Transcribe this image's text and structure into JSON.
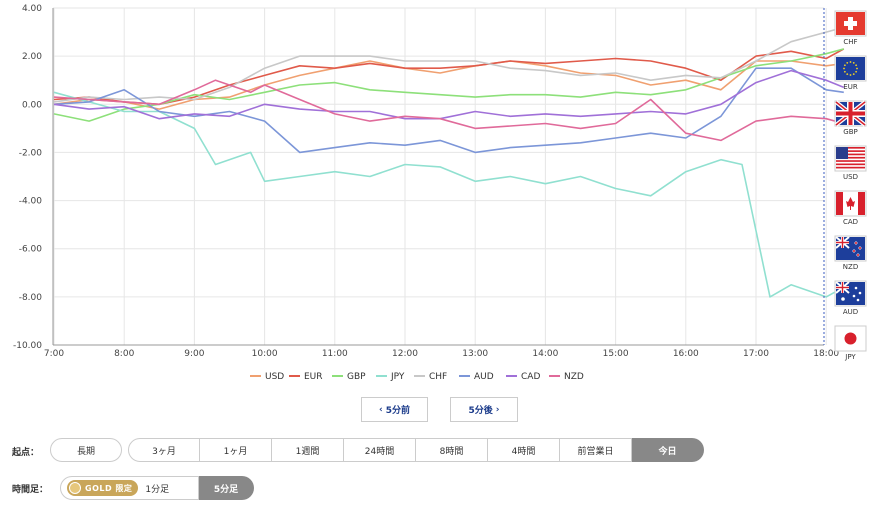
{
  "chart_data": {
    "type": "line",
    "x_ticks": [
      "7:00",
      "8:00",
      "9:00",
      "10:00",
      "11:00",
      "12:00",
      "13:00",
      "14:00",
      "15:00",
      "16:00",
      "17:00",
      "18:00"
    ],
    "y_ticks": [
      "4.00",
      "2.00",
      "0.00",
      "-2.00",
      "-4.00",
      "-6.00",
      "-8.00",
      "-10.00"
    ],
    "ylim": [
      -10,
      4
    ],
    "xlim": [
      "7:00",
      "18:15"
    ],
    "grid": true,
    "legend_position": "bottom",
    "series": [
      {
        "name": "USD",
        "color": "#f0a070",
        "points": [
          [
            0,
            0.0
          ],
          [
            0.5,
            0.2
          ],
          [
            1,
            0.1
          ],
          [
            1.5,
            -0.2
          ],
          [
            2,
            0.2
          ],
          [
            2.5,
            0.3
          ],
          [
            3,
            0.8
          ],
          [
            3.5,
            1.2
          ],
          [
            4,
            1.5
          ],
          [
            4.5,
            1.8
          ],
          [
            5,
            1.5
          ],
          [
            5.5,
            1.3
          ],
          [
            6,
            1.6
          ],
          [
            6.5,
            1.8
          ],
          [
            7,
            1.6
          ],
          [
            7.5,
            1.3
          ],
          [
            8,
            1.2
          ],
          [
            8.5,
            0.8
          ],
          [
            9,
            1.0
          ],
          [
            9.5,
            0.6
          ],
          [
            10,
            1.8
          ],
          [
            10.5,
            1.8
          ],
          [
            11,
            1.6
          ],
          [
            11.25,
            1.7
          ]
        ]
      },
      {
        "name": "EUR",
        "color": "#e05a4a",
        "points": [
          [
            0,
            0.2
          ],
          [
            0.5,
            0.3
          ],
          [
            1,
            0.1
          ],
          [
            1.5,
            0.0
          ],
          [
            2,
            0.3
          ],
          [
            2.5,
            0.8
          ],
          [
            3,
            1.2
          ],
          [
            3.5,
            1.6
          ],
          [
            4,
            1.5
          ],
          [
            4.5,
            1.7
          ],
          [
            5,
            1.5
          ],
          [
            5.5,
            1.5
          ],
          [
            6,
            1.6
          ],
          [
            6.5,
            1.8
          ],
          [
            7,
            1.7
          ],
          [
            7.5,
            1.8
          ],
          [
            8,
            1.9
          ],
          [
            8.5,
            1.8
          ],
          [
            9,
            1.5
          ],
          [
            9.5,
            1.0
          ],
          [
            10,
            2.0
          ],
          [
            10.5,
            2.2
          ],
          [
            11,
            1.9
          ],
          [
            11.25,
            2.3
          ]
        ]
      },
      {
        "name": "GBP",
        "color": "#8de07a",
        "points": [
          [
            0,
            -0.4
          ],
          [
            0.5,
            -0.7
          ],
          [
            1,
            -0.2
          ],
          [
            1.5,
            0.0
          ],
          [
            2,
            0.4
          ],
          [
            2.5,
            0.2
          ],
          [
            3,
            0.5
          ],
          [
            3.5,
            0.8
          ],
          [
            4,
            0.9
          ],
          [
            4.5,
            0.6
          ],
          [
            5,
            0.5
          ],
          [
            5.5,
            0.4
          ],
          [
            6,
            0.3
          ],
          [
            6.5,
            0.4
          ],
          [
            7,
            0.4
          ],
          [
            7.5,
            0.3
          ],
          [
            8,
            0.5
          ],
          [
            8.5,
            0.4
          ],
          [
            9,
            0.6
          ],
          [
            9.5,
            1.1
          ],
          [
            10,
            1.6
          ],
          [
            10.5,
            1.8
          ],
          [
            11,
            2.1
          ],
          [
            11.25,
            2.3
          ]
        ]
      },
      {
        "name": "JPY",
        "color": "#90e0d0",
        "points": [
          [
            0,
            0.5
          ],
          [
            0.5,
            0.1
          ],
          [
            1,
            -0.3
          ],
          [
            1.5,
            -0.3
          ],
          [
            2,
            -1.0
          ],
          [
            2.3,
            -2.5
          ],
          [
            2.8,
            -2.0
          ],
          [
            3,
            -3.2
          ],
          [
            3.5,
            -3.0
          ],
          [
            4,
            -2.8
          ],
          [
            4.5,
            -3.0
          ],
          [
            5,
            -2.5
          ],
          [
            5.5,
            -2.6
          ],
          [
            6,
            -3.2
          ],
          [
            6.5,
            -3.0
          ],
          [
            7,
            -3.3
          ],
          [
            7.5,
            -3.0
          ],
          [
            8,
            -3.5
          ],
          [
            8.5,
            -3.8
          ],
          [
            9,
            -2.8
          ],
          [
            9.5,
            -2.3
          ],
          [
            9.8,
            -2.5
          ],
          [
            10.2,
            -8.0
          ],
          [
            10.5,
            -7.5
          ],
          [
            11,
            -8.0
          ],
          [
            11.25,
            -7.6
          ]
        ]
      },
      {
        "name": "CHF",
        "color": "#c8c8c8",
        "points": [
          [
            0,
            0.1
          ],
          [
            0.5,
            0.3
          ],
          [
            1,
            0.2
          ],
          [
            1.5,
            0.3
          ],
          [
            2,
            0.2
          ],
          [
            2.5,
            0.7
          ],
          [
            3,
            1.5
          ],
          [
            3.5,
            2.0
          ],
          [
            4,
            2.0
          ],
          [
            4.5,
            2.0
          ],
          [
            5,
            1.8
          ],
          [
            5.5,
            1.8
          ],
          [
            6,
            1.8
          ],
          [
            6.5,
            1.5
          ],
          [
            7,
            1.4
          ],
          [
            7.5,
            1.2
          ],
          [
            8,
            1.3
          ],
          [
            8.5,
            1.0
          ],
          [
            9,
            1.2
          ],
          [
            9.5,
            1.1
          ],
          [
            10,
            1.8
          ],
          [
            10.5,
            2.6
          ],
          [
            11,
            3.0
          ],
          [
            11.25,
            3.2
          ]
        ]
      },
      {
        "name": "AUD",
        "color": "#7c96d8",
        "points": [
          [
            0,
            0.0
          ],
          [
            0.5,
            0.1
          ],
          [
            1,
            0.6
          ],
          [
            1.5,
            -0.3
          ],
          [
            2,
            -0.5
          ],
          [
            2.5,
            -0.3
          ],
          [
            3,
            -0.7
          ],
          [
            3.5,
            -2.0
          ],
          [
            4,
            -1.8
          ],
          [
            4.5,
            -1.6
          ],
          [
            5,
            -1.7
          ],
          [
            5.5,
            -1.5
          ],
          [
            6,
            -2.0
          ],
          [
            6.5,
            -1.8
          ],
          [
            7,
            -1.7
          ],
          [
            7.5,
            -1.6
          ],
          [
            8,
            -1.4
          ],
          [
            8.5,
            -1.2
          ],
          [
            9,
            -1.4
          ],
          [
            9.5,
            -0.5
          ],
          [
            10,
            1.5
          ],
          [
            10.5,
            1.5
          ],
          [
            11,
            0.6
          ],
          [
            11.25,
            0.5
          ]
        ]
      },
      {
        "name": "CAD",
        "color": "#a070d8",
        "points": [
          [
            0,
            0.0
          ],
          [
            0.5,
            -0.2
          ],
          [
            1,
            -0.1
          ],
          [
            1.5,
            -0.6
          ],
          [
            2,
            -0.4
          ],
          [
            2.5,
            -0.5
          ],
          [
            3,
            0.0
          ],
          [
            3.5,
            -0.2
          ],
          [
            4,
            -0.3
          ],
          [
            4.5,
            -0.3
          ],
          [
            5,
            -0.6
          ],
          [
            5.5,
            -0.6
          ],
          [
            6,
            -0.3
          ],
          [
            6.5,
            -0.5
          ],
          [
            7,
            -0.4
          ],
          [
            7.5,
            -0.5
          ],
          [
            8,
            -0.4
          ],
          [
            8.5,
            -0.3
          ],
          [
            9,
            -0.4
          ],
          [
            9.5,
            0.0
          ],
          [
            10,
            0.9
          ],
          [
            10.5,
            1.4
          ],
          [
            11,
            1.0
          ],
          [
            11.25,
            0.7
          ]
        ]
      },
      {
        "name": "NZD",
        "color": "#e06a9a",
        "points": [
          [
            0,
            0.3
          ],
          [
            0.5,
            0.2
          ],
          [
            1,
            0.1
          ],
          [
            1.5,
            0.0
          ],
          [
            2,
            0.6
          ],
          [
            2.3,
            1.0
          ],
          [
            2.8,
            0.5
          ],
          [
            3,
            0.8
          ],
          [
            3.5,
            0.2
          ],
          [
            4,
            -0.4
          ],
          [
            4.5,
            -0.7
          ],
          [
            5,
            -0.5
          ],
          [
            5.5,
            -0.6
          ],
          [
            6,
            -1.0
          ],
          [
            6.5,
            -0.9
          ],
          [
            7,
            -0.8
          ],
          [
            7.5,
            -1.0
          ],
          [
            8,
            -0.8
          ],
          [
            8.5,
            0.2
          ],
          [
            9,
            -1.2
          ],
          [
            9.5,
            -1.5
          ],
          [
            10,
            -0.7
          ],
          [
            10.5,
            -0.5
          ],
          [
            11,
            -0.6
          ],
          [
            11.25,
            -0.8
          ]
        ]
      }
    ]
  },
  "flags": [
    {
      "code": "CHF",
      "icon": "swiss-flag-icon"
    },
    {
      "code": "EUR",
      "icon": "eu-flag-icon"
    },
    {
      "code": "GBP",
      "icon": "uk-flag-icon"
    },
    {
      "code": "USD",
      "icon": "us-flag-icon"
    },
    {
      "code": "CAD",
      "icon": "canada-flag-icon"
    },
    {
      "code": "NZD",
      "icon": "nz-flag-icon"
    },
    {
      "code": "AUD",
      "icon": "australia-flag-icon"
    },
    {
      "code": "JPY",
      "icon": "japan-flag-icon"
    }
  ],
  "nav": {
    "prev": "5分前",
    "next": "5分後",
    "prev_icon": "‹",
    "next_icon": "›"
  },
  "start_row": {
    "label": "起点：",
    "options": [
      "長期",
      "3ヶ月",
      "1ヶ月",
      "1週間",
      "24時間",
      "8時間",
      "4時間",
      "前営業日",
      "今日"
    ],
    "selected": "今日"
  },
  "timeframe_row": {
    "label": "時間足：",
    "gold_label": "GOLD 限定",
    "options": [
      "1分足",
      "5分足"
    ],
    "selected": "5分足"
  },
  "colors": {
    "grid": "#e6e6e6",
    "axis": "#999",
    "active_seg": "#888",
    "gold": "#c9a65a",
    "divider": "#3a5bbf"
  }
}
